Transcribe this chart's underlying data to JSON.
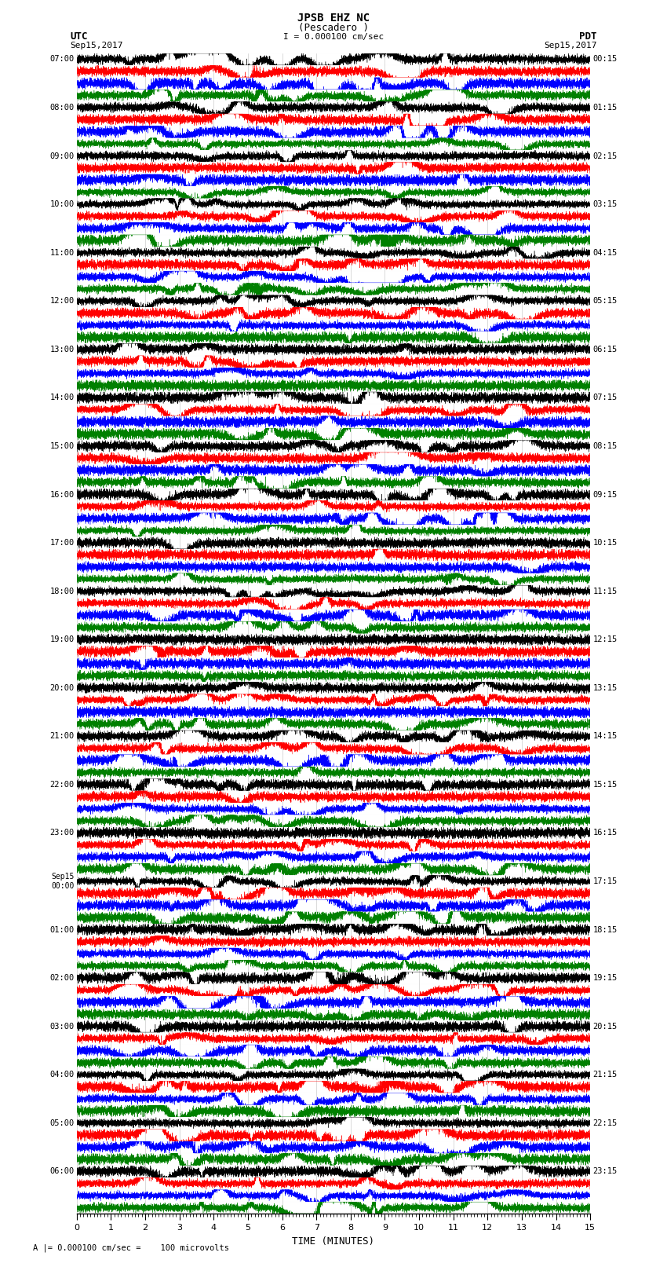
{
  "title_line1": "JPSB EHZ NC",
  "title_line2": "(Pescadero )",
  "title_line3": "I = 0.000100 cm/sec",
  "label_utc": "UTC",
  "label_pdt": "PDT",
  "label_date_left": "Sep15,2017",
  "label_date_right": "Sep15,2017",
  "xlabel": "TIME (MINUTES)",
  "footer": "A |= 0.000100 cm/sec =    100 microvolts",
  "trace_colors": [
    "black",
    "red",
    "blue",
    "green"
  ],
  "xlim": [
    0,
    15
  ],
  "xticks": [
    0,
    1,
    2,
    3,
    4,
    5,
    6,
    7,
    8,
    9,
    10,
    11,
    12,
    13,
    14,
    15
  ],
  "bg_color": "white",
  "num_rows": 96,
  "num_hours": 24,
  "traces_per_hour": 4,
  "left_labels": [
    "07:00",
    "08:00",
    "09:00",
    "10:00",
    "11:00",
    "12:00",
    "13:00",
    "14:00",
    "15:00",
    "16:00",
    "17:00",
    "18:00",
    "19:00",
    "20:00",
    "21:00",
    "22:00",
    "23:00",
    "Sep15\n00:00",
    "01:00",
    "02:00",
    "03:00",
    "04:00",
    "05:00",
    "06:00"
  ],
  "right_labels": [
    "00:15",
    "01:15",
    "02:15",
    "03:15",
    "04:15",
    "05:15",
    "06:15",
    "07:15",
    "08:15",
    "09:15",
    "10:15",
    "11:15",
    "12:15",
    "13:15",
    "14:15",
    "15:15",
    "16:15",
    "17:15",
    "18:15",
    "19:15",
    "20:15",
    "21:15",
    "22:15",
    "23:15"
  ]
}
